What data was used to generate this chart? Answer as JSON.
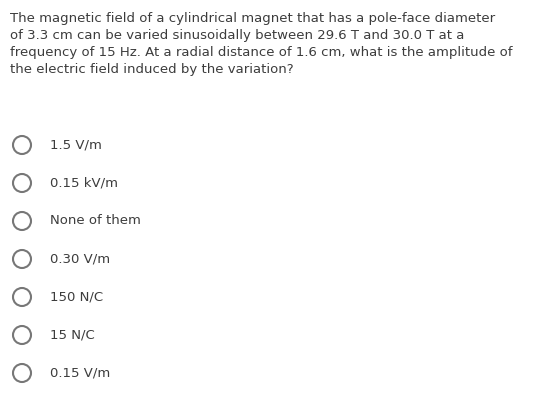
{
  "question_lines": [
    "The magnetic field of a cylindrical magnet that has a pole-face diameter",
    "of 3.3 cm can be varied sinusoidally between 29.6 T and 30.0 T at a",
    "frequency of 15 Hz. At a radial distance of 1.6 cm, what is the amplitude of",
    "the electric field induced by the variation?"
  ],
  "options": [
    "1.5 V/m",
    "0.15 kV/m",
    "None of them",
    "0.30 V/m",
    "150 N/C",
    "15 N/C",
    "0.15 V/m"
  ],
  "background_color": "#ffffff",
  "text_color": "#3c3c3c",
  "question_fontsize": 9.5,
  "option_fontsize": 9.5,
  "circle_color": "#777777"
}
